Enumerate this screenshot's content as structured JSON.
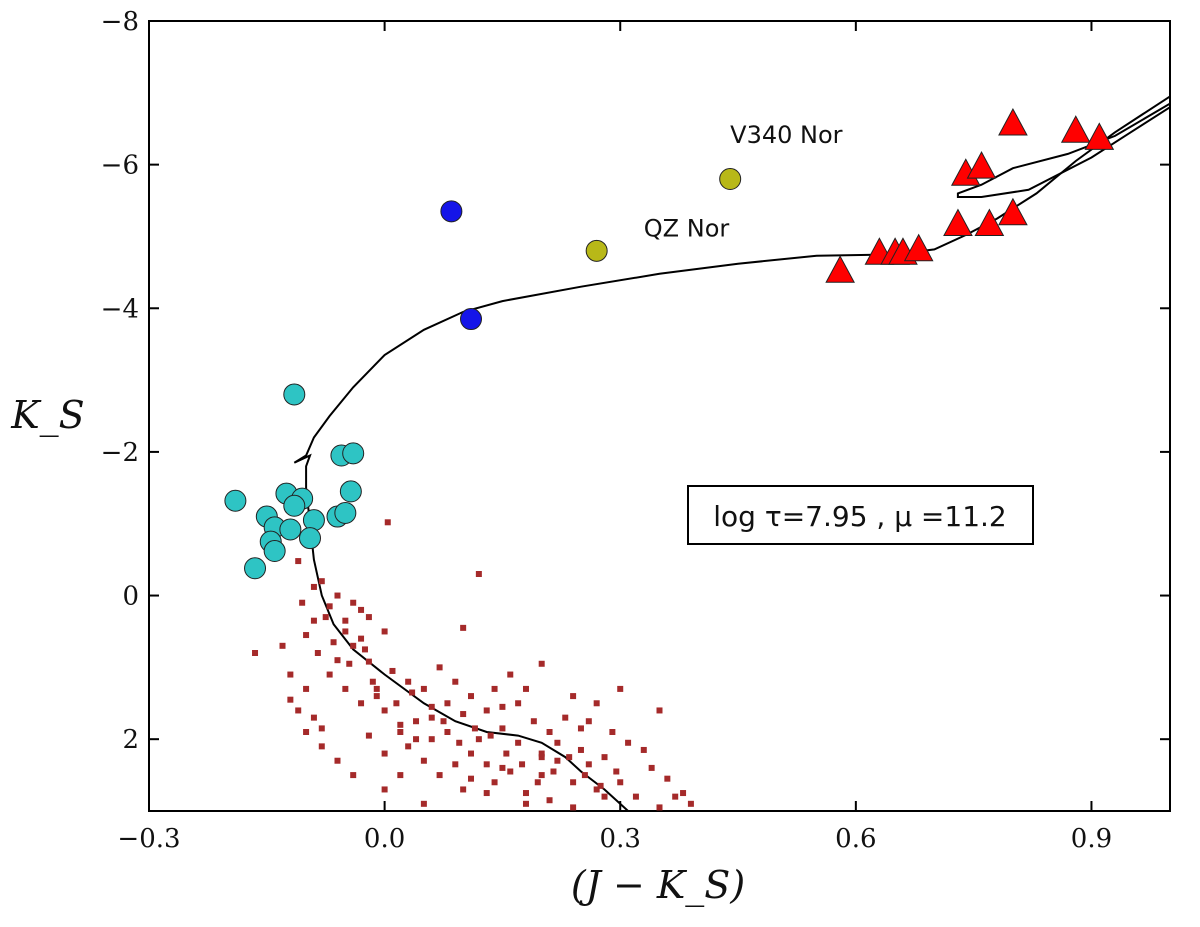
{
  "chart_data": {
    "type": "scatter",
    "xlabel": "(J − K_S)",
    "ylabel": "K_S",
    "xlim": [
      -0.3,
      1.0
    ],
    "ylim": [
      3.0,
      -8.0
    ],
    "y_inverted": true,
    "xticks": [
      -0.3,
      0.0,
      0.3,
      0.6,
      0.9
    ],
    "xtick_labels": [
      "−0.3",
      "0.0",
      "0.3",
      "0.6",
      "0.9"
    ],
    "yticks": [
      -8,
      -6,
      -4,
      -2,
      0,
      2
    ],
    "ytick_labels": [
      "−8",
      "−6",
      "−4",
      "−2",
      "0",
      "2"
    ],
    "grid": false,
    "annotation_box": "log τ=7.95 , μ =11.2",
    "point_labels": [
      {
        "text": "V340 Nor",
        "x": 0.44,
        "y": -6.3
      },
      {
        "text": "QZ Nor",
        "x": 0.33,
        "y": -5.0
      }
    ],
    "series": [
      {
        "marker": "triangle",
        "color": "#ff0000",
        "points": [
          [
            0.8,
            -6.55
          ],
          [
            0.88,
            -6.45
          ],
          [
            0.91,
            -6.35
          ],
          [
            0.74,
            -5.85
          ],
          [
            0.76,
            -5.95
          ],
          [
            0.73,
            -5.15
          ],
          [
            0.77,
            -5.15
          ],
          [
            0.8,
            -5.3
          ],
          [
            0.63,
            -4.75
          ],
          [
            0.65,
            -4.75
          ],
          [
            0.66,
            -4.75
          ],
          [
            0.68,
            -4.8
          ],
          [
            0.58,
            -4.5
          ]
        ]
      },
      {
        "marker": "circle",
        "color": "#1515e8",
        "points": [
          [
            0.085,
            -5.35
          ],
          [
            0.11,
            -3.85
          ]
        ]
      },
      {
        "marker": "circle",
        "color": "#b8b818",
        "points": [
          [
            0.44,
            -5.8
          ],
          [
            0.27,
            -4.8
          ]
        ]
      },
      {
        "marker": "circle",
        "color": "#2ec4c4",
        "points": [
          [
            -0.115,
            -2.8
          ],
          [
            -0.055,
            -1.95
          ],
          [
            -0.04,
            -1.98
          ],
          [
            -0.043,
            -1.45
          ],
          [
            -0.19,
            -1.32
          ],
          [
            -0.125,
            -1.42
          ],
          [
            -0.105,
            -1.35
          ],
          [
            -0.115,
            -1.25
          ],
          [
            -0.15,
            -1.1
          ],
          [
            -0.09,
            -1.05
          ],
          [
            -0.06,
            -1.1
          ],
          [
            -0.05,
            -1.15
          ],
          [
            -0.14,
            -0.95
          ],
          [
            -0.12,
            -0.92
          ],
          [
            -0.095,
            -0.8
          ],
          [
            -0.145,
            -0.75
          ],
          [
            -0.14,
            -0.62
          ],
          [
            -0.165,
            -0.38
          ]
        ]
      },
      {
        "marker": "square",
        "color": "#a52a2a",
        "points": [
          [
            0.004,
            -1.02
          ],
          [
            -0.11,
            -0.48
          ],
          [
            -0.09,
            -0.12
          ],
          [
            -0.07,
            0.15
          ],
          [
            -0.05,
            0.35
          ],
          [
            -0.075,
            0.3
          ],
          [
            -0.1,
            0.55
          ],
          [
            -0.085,
            0.8
          ],
          [
            -0.06,
            0.9
          ],
          [
            -0.04,
            0.7
          ],
          [
            -0.03,
            0.6
          ],
          [
            -0.02,
            0.92
          ],
          [
            -0.07,
            1.1
          ],
          [
            -0.05,
            1.3
          ],
          [
            -0.03,
            1.5
          ],
          [
            -0.01,
            1.4
          ],
          [
            -0.12,
            1.1
          ],
          [
            -0.1,
            1.3
          ],
          [
            -0.13,
            0.7
          ],
          [
            -0.165,
            0.8
          ],
          [
            -0.11,
            1.6
          ],
          [
            -0.09,
            1.7
          ],
          [
            -0.12,
            1.45
          ],
          [
            -0.08,
            1.85
          ],
          [
            0.0,
            1.6
          ],
          [
            0.02,
            1.9
          ],
          [
            0.04,
            1.75
          ],
          [
            0.06,
            1.55
          ],
          [
            0.08,
            1.9
          ],
          [
            0.1,
            1.65
          ],
          [
            0.12,
            2.0
          ],
          [
            0.05,
            2.3
          ],
          [
            0.03,
            2.1
          ],
          [
            0.07,
            2.5
          ],
          [
            0.09,
            2.35
          ],
          [
            0.11,
            2.2
          ],
          [
            0.13,
            2.35
          ],
          [
            0.14,
            2.6
          ],
          [
            0.16,
            2.45
          ],
          [
            0.18,
            2.75
          ],
          [
            0.2,
            2.5
          ],
          [
            0.22,
            2.3
          ],
          [
            0.24,
            2.6
          ],
          [
            0.26,
            2.35
          ],
          [
            0.28,
            2.8
          ],
          [
            0.3,
            2.6
          ],
          [
            0.32,
            2.8
          ],
          [
            0.34,
            2.4
          ],
          [
            0.36,
            2.55
          ],
          [
            0.38,
            2.75
          ],
          [
            0.39,
            2.9
          ],
          [
            0.35,
            1.6
          ],
          [
            0.3,
            1.3
          ],
          [
            0.27,
            1.5
          ],
          [
            0.24,
            1.4
          ],
          [
            0.2,
            0.95
          ],
          [
            0.15,
            1.55
          ],
          [
            0.18,
            1.3
          ],
          [
            0.25,
            1.85
          ],
          [
            0.22,
            2.05
          ],
          [
            0.2,
            2.25
          ],
          [
            0.17,
            2.05
          ],
          [
            0.15,
            1.85
          ],
          [
            0.13,
            1.6
          ],
          [
            0.11,
            1.4
          ],
          [
            0.09,
            1.2
          ],
          [
            0.07,
            1.0
          ],
          [
            0.05,
            1.3
          ],
          [
            0.03,
            1.2
          ],
          [
            0.01,
            1.05
          ],
          [
            -0.01,
            1.3
          ],
          [
            -0.03,
            0.2
          ],
          [
            -0.05,
            0.5
          ],
          [
            0.0,
            0.5
          ],
          [
            -0.08,
            -0.2
          ],
          [
            -0.06,
            0.0
          ],
          [
            -0.04,
            0.1
          ],
          [
            -0.02,
            0.3
          ],
          [
            0.12,
            -0.3
          ],
          [
            0.1,
            0.45
          ],
          [
            -0.1,
            1.9
          ],
          [
            -0.08,
            2.1
          ],
          [
            -0.06,
            2.3
          ],
          [
            -0.04,
            2.5
          ],
          [
            0.0,
            2.7
          ],
          [
            0.02,
            2.5
          ],
          [
            0.05,
            2.9
          ],
          [
            0.1,
            2.7
          ],
          [
            0.15,
            2.4
          ],
          [
            0.2,
            2.2
          ],
          [
            0.25,
            2.15
          ],
          [
            0.28,
            2.25
          ],
          [
            0.31,
            2.05
          ],
          [
            0.33,
            2.15
          ],
          [
            0.29,
            1.9
          ],
          [
            0.26,
            1.75
          ],
          [
            0.23,
            1.7
          ],
          [
            0.21,
            1.9
          ],
          [
            0.19,
            1.75
          ],
          [
            0.17,
            1.5
          ],
          [
            0.14,
            1.3
          ],
          [
            0.16,
            1.1
          ],
          [
            0.08,
            1.5
          ],
          [
            0.06,
            1.7
          ],
          [
            0.04,
            2.0
          ],
          [
            0.02,
            1.8
          ],
          [
            -0.02,
            1.95
          ],
          [
            0.0,
            2.2
          ],
          [
            0.35,
            2.95
          ],
          [
            0.37,
            2.8
          ],
          [
            0.06,
            2.0
          ],
          [
            0.11,
            2.55
          ],
          [
            0.13,
            2.75
          ],
          [
            0.18,
            2.9
          ],
          [
            0.21,
            2.85
          ],
          [
            0.24,
            2.95
          ],
          [
            0.27,
            2.7
          ],
          [
            -0.025,
            0.75
          ],
          [
            -0.045,
            0.95
          ],
          [
            -0.065,
            0.65
          ],
          [
            -0.09,
            0.35
          ],
          [
            -0.105,
            0.1
          ],
          [
            -0.015,
            1.2
          ],
          [
            0.015,
            1.5
          ],
          [
            0.035,
            1.35
          ],
          [
            0.075,
            1.75
          ],
          [
            0.095,
            2.05
          ],
          [
            0.115,
            1.85
          ],
          [
            0.135,
            1.95
          ],
          [
            0.155,
            2.2
          ],
          [
            0.175,
            2.35
          ],
          [
            0.195,
            2.6
          ],
          [
            0.215,
            2.45
          ],
          [
            0.235,
            2.25
          ],
          [
            0.255,
            2.5
          ],
          [
            0.275,
            2.65
          ],
          [
            0.295,
            2.45
          ]
        ]
      }
    ],
    "isochrone": [
      [
        0.31,
        3.0
      ],
      [
        0.28,
        2.7
      ],
      [
        0.25,
        2.45
      ],
      [
        0.23,
        2.25
      ],
      [
        0.2,
        2.05
      ],
      [
        0.17,
        1.95
      ],
      [
        0.13,
        1.9
      ],
      [
        0.09,
        1.75
      ],
      [
        0.05,
        1.5
      ],
      [
        0.0,
        1.1
      ],
      [
        -0.04,
        0.75
      ],
      [
        -0.065,
        0.4
      ],
      [
        -0.08,
        0.0
      ],
      [
        -0.09,
        -0.5
      ],
      [
        -0.095,
        -1.0
      ],
      [
        -0.1,
        -1.5
      ],
      [
        -0.1,
        -1.8
      ],
      [
        -0.095,
        -1.95
      ],
      [
        -0.115,
        -1.85
      ],
      [
        -0.1,
        -1.95
      ],
      [
        -0.09,
        -2.2
      ],
      [
        -0.07,
        -2.5
      ],
      [
        -0.04,
        -2.9
      ],
      [
        0.0,
        -3.35
      ],
      [
        0.05,
        -3.7
      ],
      [
        0.1,
        -3.95
      ],
      [
        0.15,
        -4.1
      ],
      [
        0.25,
        -4.3
      ],
      [
        0.35,
        -4.48
      ],
      [
        0.45,
        -4.62
      ],
      [
        0.55,
        -4.73
      ],
      [
        0.65,
        -4.75
      ],
      [
        0.7,
        -4.82
      ],
      [
        0.74,
        -5.02
      ],
      [
        0.78,
        -5.25
      ],
      [
        0.83,
        -5.6
      ],
      [
        0.88,
        -6.05
      ],
      [
        0.93,
        -6.45
      ],
      [
        1.0,
        -6.95
      ]
    ],
    "isochrone_loop": [
      [
        1.0,
        -6.85
      ],
      [
        0.93,
        -6.4
      ],
      [
        0.87,
        -6.15
      ],
      [
        0.8,
        -5.95
      ],
      [
        0.76,
        -5.72
      ],
      [
        0.73,
        -5.6
      ],
      [
        0.73,
        -5.55
      ],
      [
        0.76,
        -5.55
      ],
      [
        0.82,
        -5.65
      ],
      [
        0.9,
        -6.1
      ],
      [
        0.95,
        -6.45
      ],
      [
        1.0,
        -6.8
      ]
    ]
  }
}
